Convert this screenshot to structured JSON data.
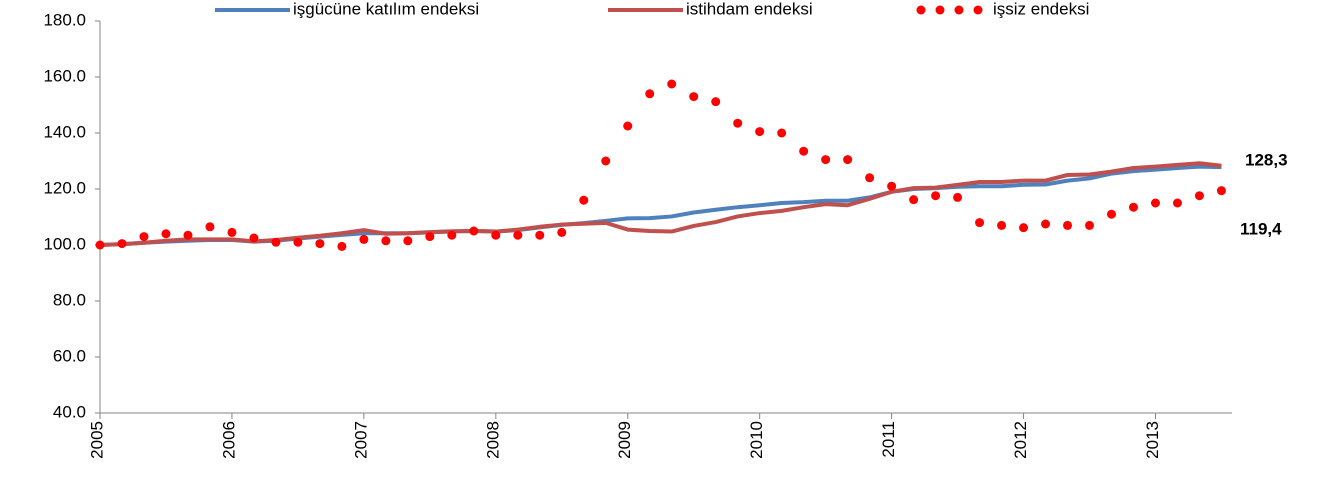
{
  "chart_data": {
    "type": "line",
    "x": [
      2005.0,
      2005.1667,
      2005.3333,
      2005.5,
      2005.6667,
      2005.8333,
      2006.0,
      2006.1667,
      2006.3333,
      2006.5,
      2006.6667,
      2006.8333,
      2007.0,
      2007.1667,
      2007.3333,
      2007.5,
      2007.6667,
      2007.8333,
      2008.0,
      2008.1667,
      2008.3333,
      2008.5,
      2008.6667,
      2008.8333,
      2009.0,
      2009.1667,
      2009.3333,
      2009.5,
      2009.6667,
      2009.8333,
      2010.0,
      2010.1667,
      2010.3333,
      2010.5,
      2010.6667,
      2010.8333,
      2011.0,
      2011.1667,
      2011.3333,
      2011.5,
      2011.6667,
      2011.8333,
      2012.0,
      2012.1667,
      2012.3333,
      2012.5,
      2012.6667,
      2012.8333,
      2013.0,
      2013.1667,
      2013.3333,
      2013.5
    ],
    "series": [
      {
        "name": "işgücüne katılım endeksi",
        "color": "#4f81bd",
        "marker": false,
        "values": [
          100,
          100.3,
          100.8,
          101.2,
          101.5,
          101.8,
          101.8,
          101.2,
          101.5,
          102.3,
          103,
          103.6,
          104.2,
          104.2,
          104.2,
          104.5,
          104.8,
          105,
          104.8,
          105.3,
          106.3,
          107.2,
          107.8,
          108.6,
          109.5,
          109.6,
          110.2,
          111.6,
          112.6,
          113.5,
          114.2,
          115,
          115.3,
          115.8,
          115.8,
          117,
          119,
          120,
          120.3,
          120.8,
          121,
          121,
          121.5,
          121.6,
          123,
          123.8,
          125.5,
          126.4,
          126.9,
          127.5,
          128,
          127.8
        ]
      },
      {
        "name": "istihdam endeksi",
        "color": "#c0504d",
        "marker": false,
        "values": [
          100,
          100.3,
          100.8,
          101.5,
          102,
          102,
          102,
          101.3,
          101.8,
          102.6,
          103.3,
          104.2,
          105.3,
          104,
          104.2,
          104.6,
          104.9,
          105,
          104.8,
          105.5,
          106.5,
          107.3,
          107.6,
          107.9,
          105.5,
          105,
          104.8,
          106.8,
          108.2,
          110.2,
          111.4,
          112.2,
          113.5,
          114.6,
          114.2,
          116.5,
          119,
          120.3,
          120.5,
          121.5,
          122.5,
          122.5,
          123,
          123,
          125,
          125.2,
          126.2,
          127.5,
          128,
          128.6,
          129.2,
          128.3
        ]
      },
      {
        "name": "işsiz endeksi",
        "color": "#ff0000",
        "marker": true,
        "values": [
          100,
          100.5,
          103,
          104,
          103.5,
          106.5,
          104.5,
          102.5,
          101,
          101,
          100.5,
          99.5,
          102,
          101.5,
          101.5,
          103,
          103.5,
          105,
          103.5,
          103.5,
          103.5,
          104.5,
          116,
          130,
          142.5,
          154,
          157.5,
          153,
          151.2,
          143.5,
          140.5,
          140,
          133.5,
          130.5,
          130.5,
          124,
          121,
          116.2,
          117.6,
          117,
          108,
          107,
          106.2,
          107.5,
          107,
          107,
          111,
          113.5,
          115,
          115,
          117.6,
          119.4
        ]
      }
    ],
    "annotations": [
      "128,3",
      "119,4"
    ],
    "xlim": [
      2005,
      2013.58
    ],
    "xticks": [
      2005,
      2006,
      2007,
      2008,
      2009,
      2010,
      2011,
      2012,
      2013
    ],
    "ylim": [
      40,
      180
    ],
    "yticks": [
      {
        "value": 40,
        "label": "40.0"
      },
      {
        "value": 60,
        "label": "60.0"
      },
      {
        "value": 80,
        "label": "80.0"
      },
      {
        "value": 100,
        "label": "100.0"
      },
      {
        "value": 120,
        "label": "120.0"
      },
      {
        "value": 140,
        "label": "140.0"
      },
      {
        "value": 160,
        "label": "160.0"
      },
      {
        "value": 180,
        "label": "180.0"
      }
    ],
    "grid": false,
    "legend": "top"
  }
}
